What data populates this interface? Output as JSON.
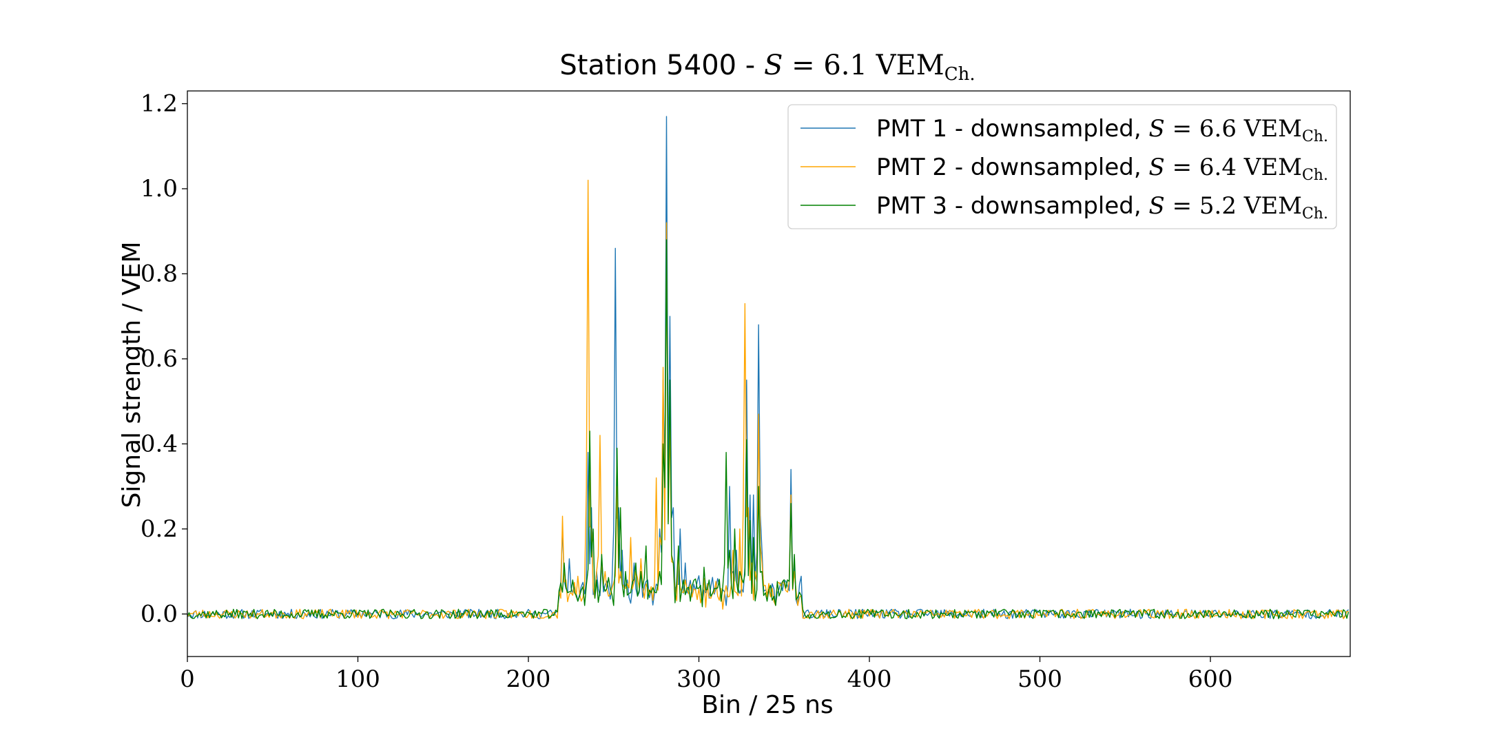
{
  "chart_data": {
    "type": "line",
    "title_text": "Station 5400 - ",
    "title_math_var": "S",
    "title_math_rest": " = 6.1 VEM",
    "title_math_sub": "Ch.",
    "xlabel": "Bin / 25 ns",
    "ylabel": "Signal strength / VEM",
    "xlim": [
      0,
      682
    ],
    "ylim": [
      -0.1,
      1.23
    ],
    "xticks": [
      0,
      100,
      200,
      300,
      400,
      500,
      600
    ],
    "yticks": [
      0.0,
      0.2,
      0.4,
      0.6,
      0.8,
      1.0,
      1.2
    ],
    "ytick_labels": [
      "0.0",
      "0.2",
      "0.4",
      "0.6",
      "0.8",
      "1.0",
      "1.2"
    ],
    "legend_position": "upper-right",
    "grid": false,
    "n_bins": 682,
    "series": [
      {
        "name": "PMT 1 - downsampled, S = 6.6 VEM_Ch.",
        "label_text": "PMT 1 - downsampled, ",
        "label_var": "S",
        "label_math": " = 6.6 VEM",
        "label_sub": "Ch.",
        "color": "#1f77b4",
        "noise_amplitude": 0.008,
        "seed": 11,
        "peaks": [
          [
            220,
            0.2
          ],
          [
            222,
            0.06
          ],
          [
            224,
            0.13
          ],
          [
            226,
            0.05
          ],
          [
            229,
            0.03
          ],
          [
            235,
            0.38
          ],
          [
            237,
            0.25
          ],
          [
            240,
            0.1
          ],
          [
            243,
            0.12
          ],
          [
            247,
            0.06
          ],
          [
            251,
            0.86
          ],
          [
            253,
            0.25
          ],
          [
            255,
            0.15
          ],
          [
            258,
            0.08
          ],
          [
            262,
            0.12
          ],
          [
            266,
            0.1
          ],
          [
            270,
            0.08
          ],
          [
            274,
            0.05
          ],
          [
            277,
            0.2
          ],
          [
            279,
            0.55
          ],
          [
            281,
            1.17
          ],
          [
            283,
            0.7
          ],
          [
            285,
            0.25
          ],
          [
            287,
            0.07
          ],
          [
            289,
            0.2
          ],
          [
            292,
            0.12
          ],
          [
            296,
            0.04
          ],
          [
            300,
            0.09
          ],
          [
            304,
            0.05
          ],
          [
            310,
            0.06
          ],
          [
            313,
            0.04
          ],
          [
            316,
            0.02
          ],
          [
            318,
            0.3
          ],
          [
            320,
            0.1
          ],
          [
            322,
            0.15
          ],
          [
            325,
            0.06
          ],
          [
            328,
            0.55
          ],
          [
            330,
            0.28
          ],
          [
            332,
            0.28
          ],
          [
            335,
            0.68
          ],
          [
            337,
            0.15
          ],
          [
            340,
            0.05
          ],
          [
            345,
            0.02
          ],
          [
            354,
            0.34
          ],
          [
            356,
            0.12
          ],
          [
            358,
            0.02
          ]
        ]
      },
      {
        "name": "PMT 2 - downsampled, S = 6.4 VEM_Ch.",
        "label_text": "PMT 2 - downsampled, ",
        "label_var": "S",
        "label_math": " = 6.4 VEM",
        "label_sub": "Ch.",
        "color": "#ffa500",
        "noise_amplitude": 0.008,
        "seed": 23,
        "peaks": [
          [
            220,
            0.23
          ],
          [
            222,
            0.08
          ],
          [
            225,
            0.05
          ],
          [
            228,
            0.04
          ],
          [
            231,
            0.03
          ],
          [
            235,
            1.02
          ],
          [
            237,
            0.2
          ],
          [
            240,
            0.1
          ],
          [
            242,
            0.42
          ],
          [
            245,
            0.1
          ],
          [
            249,
            0.06
          ],
          [
            252,
            0.3
          ],
          [
            254,
            0.1
          ],
          [
            257,
            0.06
          ],
          [
            260,
            0.18
          ],
          [
            263,
            0.1
          ],
          [
            266,
            0.13
          ],
          [
            270,
            0.06
          ],
          [
            275,
            0.32
          ],
          [
            277,
            0.18
          ],
          [
            279,
            0.58
          ],
          [
            281,
            0.92
          ],
          [
            283,
            0.45
          ],
          [
            285,
            0.12
          ],
          [
            288,
            0.15
          ],
          [
            292,
            0.08
          ],
          [
            296,
            0.04
          ],
          [
            300,
            0.06
          ],
          [
            305,
            0.07
          ],
          [
            309,
            0.05
          ],
          [
            313,
            0.06
          ],
          [
            317,
            0.04
          ],
          [
            320,
            0.15
          ],
          [
            324,
            0.2
          ],
          [
            327,
            0.73
          ],
          [
            329,
            0.25
          ],
          [
            331,
            0.12
          ],
          [
            333,
            0.1
          ],
          [
            335,
            0.47
          ],
          [
            337,
            0.12
          ],
          [
            340,
            0.04
          ],
          [
            345,
            0.02
          ],
          [
            354,
            0.28
          ],
          [
            356,
            0.1
          ],
          [
            358,
            0.02
          ]
        ]
      },
      {
        "name": "PMT 3 - downsampled, S = 5.2 VEM_Ch.",
        "label_text": "PMT 3 - downsampled, ",
        "label_var": "S",
        "label_math": " = 5.2 VEM",
        "label_sub": "Ch.",
        "color": "#008000",
        "noise_amplitude": 0.008,
        "seed": 37,
        "peaks": [
          [
            221,
            0.12
          ],
          [
            223,
            0.05
          ],
          [
            226,
            0.08
          ],
          [
            229,
            0.03
          ],
          [
            233,
            0.02
          ],
          [
            236,
            0.43
          ],
          [
            238,
            0.2
          ],
          [
            240,
            0.08
          ],
          [
            243,
            0.14
          ],
          [
            246,
            0.06
          ],
          [
            250,
            0.02
          ],
          [
            252,
            0.39
          ],
          [
            254,
            0.25
          ],
          [
            257,
            0.1
          ],
          [
            260,
            0.05
          ],
          [
            263,
            0.12
          ],
          [
            266,
            0.1
          ],
          [
            269,
            0.16
          ],
          [
            272,
            0.05
          ],
          [
            277,
            0.1
          ],
          [
            279,
            0.4
          ],
          [
            281,
            0.88
          ],
          [
            283,
            0.55
          ],
          [
            285,
            0.12
          ],
          [
            288,
            0.16
          ],
          [
            291,
            0.08
          ],
          [
            295,
            0.03
          ],
          [
            299,
            0.06
          ],
          [
            303,
            0.11
          ],
          [
            306,
            0.08
          ],
          [
            310,
            0.06
          ],
          [
            313,
            0.03
          ],
          [
            316,
            0.38
          ],
          [
            318,
            0.15
          ],
          [
            321,
            0.2
          ],
          [
            324,
            0.1
          ],
          [
            328,
            0.41
          ],
          [
            330,
            0.22
          ],
          [
            332,
            0.18
          ],
          [
            335,
            0.3
          ],
          [
            337,
            0.1
          ],
          [
            340,
            0.03
          ],
          [
            345,
            0.02
          ],
          [
            354,
            0.26
          ],
          [
            356,
            0.14
          ],
          [
            358,
            0.04
          ]
        ]
      }
    ]
  }
}
